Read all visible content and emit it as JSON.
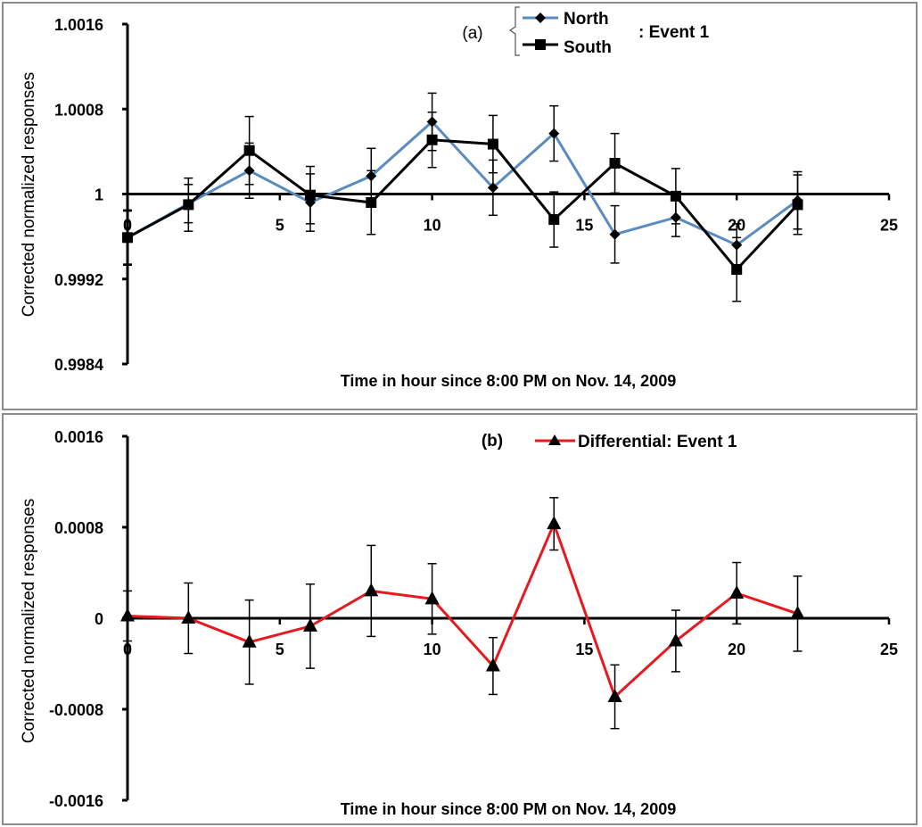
{
  "chart_data": [
    {
      "type": "line",
      "panel_label": "(a)",
      "xlabel": "Time in hour since 8:00 PM on Nov. 14, 2009",
      "ylabel": "Corrected normalized responses",
      "xlim": [
        0,
        25
      ],
      "ylim": [
        0.9984,
        1.0016
      ],
      "x_axis_crosses_y": 1,
      "xticks": [
        0,
        5,
        10,
        15,
        20,
        25
      ],
      "xtick_labels": [
        "0",
        "5",
        "10",
        "15",
        "20",
        "25"
      ],
      "yticks": [
        0.9984,
        0.9992,
        1,
        1.0008,
        1.0016
      ],
      "ytick_labels": [
        "0.9984",
        "0.9992",
        "1",
        "1.0008",
        "1.0016"
      ],
      "legend_group_label": ": Event 1",
      "series": [
        {
          "name": "North",
          "color": "#5b8bc0",
          "marker": "diamond",
          "x": [
            0,
            2,
            4,
            6,
            8,
            10,
            12,
            14,
            16,
            18,
            20,
            22
          ],
          "values": [
            0.99959,
            0.99991,
            1.00022,
            0.99992,
            1.00017,
            1.00068,
            1.00006,
            1.00057,
            0.99962,
            0.99978,
            0.99952,
            0.99994
          ],
          "error": [
            0.00025,
            0.00018,
            0.00026,
            0.00027,
            0.00026,
            0.00027,
            0.00026,
            0.00026,
            0.00027,
            0.00018,
            0.0002,
            0.00027
          ]
        },
        {
          "name": "South",
          "color": "#000000",
          "marker": "square",
          "x": [
            0,
            2,
            4,
            6,
            8,
            10,
            12,
            14,
            16,
            18,
            20,
            22
          ],
          "values": [
            0.99959,
            0.9999,
            1.00041,
            0.99999,
            0.99992,
            1.00051,
            1.00047,
            0.99976,
            1.00029,
            0.99998,
            0.99929,
            0.9999
          ],
          "error": [
            0.00026,
            0.00025,
            0.00032,
            0.00027,
            0.0003,
            0.00026,
            0.00027,
            0.00026,
            0.00028,
            0.00026,
            0.0003,
            0.00028
          ]
        }
      ]
    },
    {
      "type": "line",
      "panel_label": "(b)",
      "xlabel": "Time in hour since 8:00 PM on Nov. 14, 2009",
      "ylabel": "Corrected normalized responses",
      "xlim": [
        0,
        25
      ],
      "ylim": [
        -0.0016,
        0.0016
      ],
      "x_axis_crosses_y": 0,
      "xticks": [
        0,
        5,
        10,
        15,
        20,
        25
      ],
      "xtick_labels": [
        "0",
        "5",
        "10",
        "15",
        "20",
        "25"
      ],
      "yticks": [
        -0.0016,
        -0.0008,
        0,
        0.0008,
        0.0016
      ],
      "ytick_labels": [
        "-0.0016",
        "-0.0008",
        "0",
        "0.0008",
        "0.0016"
      ],
      "series": [
        {
          "name": "Differential: Event 1",
          "color": "#e8191e",
          "marker": "triangle",
          "x": [
            0,
            2,
            4,
            6,
            8,
            10,
            12,
            14,
            16,
            18,
            20,
            22
          ],
          "values": [
            2e-05,
            0.0,
            -0.00021,
            -7e-05,
            0.00024,
            0.00017,
            -0.00042,
            0.00083,
            -0.00069,
            -0.0002,
            0.00022,
            4e-05
          ],
          "error": [
            0.00022,
            0.00031,
            0.00037,
            0.00037,
            0.0004,
            0.00031,
            0.00025,
            0.00023,
            0.00028,
            0.00027,
            0.00027,
            0.00033
          ]
        }
      ]
    }
  ]
}
